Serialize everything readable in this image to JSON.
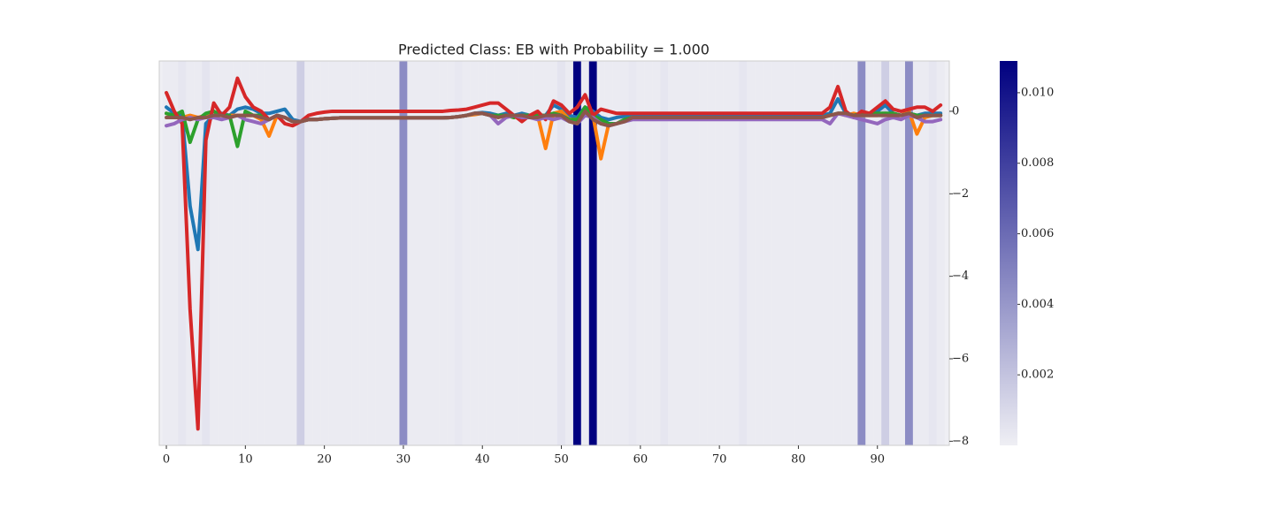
{
  "chart_data": {
    "type": "line",
    "title": "Predicted Class: EB with Probability = 1.000",
    "x": [
      0,
      1,
      2,
      3,
      4,
      5,
      6,
      7,
      8,
      9,
      10,
      11,
      12,
      13,
      14,
      15,
      16,
      17,
      18,
      19,
      20,
      21,
      22,
      23,
      24,
      25,
      26,
      27,
      28,
      29,
      30,
      31,
      32,
      33,
      34,
      35,
      36,
      37,
      38,
      39,
      40,
      41,
      42,
      43,
      44,
      45,
      46,
      47,
      48,
      49,
      50,
      51,
      52,
      53,
      54,
      55,
      56,
      57,
      58,
      59,
      60,
      61,
      62,
      63,
      64,
      65,
      66,
      67,
      68,
      69,
      70,
      71,
      72,
      73,
      74,
      75,
      76,
      77,
      78,
      79,
      80,
      81,
      82,
      83,
      84,
      85,
      86,
      87,
      88,
      89,
      90,
      91,
      92,
      93,
      94,
      95,
      96,
      97,
      98
    ],
    "xlim": [
      -0.9,
      99.1
    ],
    "xticks": [
      0,
      10,
      20,
      30,
      40,
      50,
      60,
      70,
      80,
      90
    ],
    "ylim": [
      -8.1,
      1.22
    ],
    "yticks": [
      0,
      {
        "value": -2,
        "label": "−2"
      },
      {
        "value": -4,
        "label": "−4"
      },
      {
        "value": -6,
        "label": "−6"
      },
      {
        "value": -8,
        "label": "−8"
      }
    ],
    "series": [
      {
        "color": "#1f77b4",
        "values": [
          0.1,
          -0.05,
          -0.1,
          -2.3,
          -3.35,
          -0.3,
          -0.1,
          -0.05,
          -0.1,
          0.05,
          0.1,
          0.05,
          -0.05,
          -0.05,
          0.0,
          0.05,
          -0.2,
          -0.25,
          -0.2,
          -0.2,
          -0.18,
          -0.17,
          -0.16,
          -0.16,
          -0.16,
          -0.16,
          -0.16,
          -0.16,
          -0.16,
          -0.16,
          -0.16,
          -0.16,
          -0.16,
          -0.16,
          -0.16,
          -0.16,
          -0.15,
          -0.13,
          -0.1,
          -0.05,
          -0.03,
          -0.05,
          -0.1,
          -0.05,
          -0.1,
          -0.05,
          -0.1,
          -0.1,
          -0.1,
          0.15,
          0.05,
          -0.1,
          -0.15,
          0.1,
          0.0,
          -0.15,
          -0.2,
          -0.15,
          -0.12,
          -0.1,
          -0.1,
          -0.1,
          -0.1,
          -0.1,
          -0.1,
          -0.1,
          -0.1,
          -0.1,
          -0.1,
          -0.1,
          -0.1,
          -0.1,
          -0.1,
          -0.1,
          -0.1,
          -0.1,
          -0.1,
          -0.1,
          -0.1,
          -0.1,
          -0.1,
          -0.1,
          -0.1,
          -0.1,
          -0.05,
          0.3,
          -0.05,
          -0.15,
          -0.05,
          -0.1,
          0.0,
          0.15,
          -0.05,
          -0.1,
          -0.05,
          -0.1,
          -0.05,
          -0.05,
          -0.05
        ]
      },
      {
        "color": "#ff7f0e",
        "values": [
          -0.05,
          -0.15,
          -0.15,
          -0.1,
          -0.15,
          -0.1,
          -0.1,
          -0.1,
          -0.1,
          -0.1,
          -0.1,
          -0.1,
          -0.2,
          -0.6,
          -0.1,
          -0.15,
          -0.25,
          -0.25,
          -0.2,
          -0.2,
          -0.18,
          -0.17,
          -0.16,
          -0.16,
          -0.16,
          -0.16,
          -0.16,
          -0.16,
          -0.16,
          -0.16,
          -0.16,
          -0.16,
          -0.16,
          -0.16,
          -0.16,
          -0.16,
          -0.15,
          -0.13,
          -0.1,
          -0.08,
          -0.05,
          -0.1,
          -0.15,
          -0.1,
          -0.15,
          -0.1,
          -0.1,
          -0.1,
          -0.9,
          -0.05,
          0.0,
          -0.2,
          -0.2,
          0.05,
          -0.1,
          -1.15,
          -0.3,
          -0.3,
          -0.2,
          -0.15,
          -0.15,
          -0.15,
          -0.15,
          -0.15,
          -0.15,
          -0.15,
          -0.15,
          -0.15,
          -0.15,
          -0.15,
          -0.15,
          -0.15,
          -0.15,
          -0.15,
          -0.15,
          -0.15,
          -0.15,
          -0.15,
          -0.15,
          -0.15,
          -0.15,
          -0.15,
          -0.15,
          -0.15,
          -0.1,
          -0.05,
          -0.1,
          -0.05,
          -0.1,
          -0.1,
          -0.1,
          -0.05,
          -0.1,
          -0.1,
          0.0,
          -0.55,
          -0.15,
          -0.1,
          -0.1
        ]
      },
      {
        "color": "#2ca02c",
        "values": [
          -0.05,
          -0.1,
          0.0,
          -0.75,
          -0.2,
          -0.05,
          0.0,
          -0.1,
          -0.1,
          -0.85,
          0.0,
          -0.1,
          -0.1,
          -0.2,
          -0.1,
          -0.15,
          -0.25,
          -0.25,
          -0.2,
          -0.2,
          -0.18,
          -0.17,
          -0.16,
          -0.16,
          -0.16,
          -0.16,
          -0.16,
          -0.16,
          -0.16,
          -0.16,
          -0.16,
          -0.16,
          -0.16,
          -0.16,
          -0.16,
          -0.16,
          -0.15,
          -0.13,
          -0.1,
          -0.05,
          -0.05,
          -0.1,
          -0.1,
          -0.1,
          -0.15,
          -0.1,
          -0.1,
          -0.1,
          -0.1,
          -0.05,
          -0.1,
          -0.2,
          -0.2,
          0.1,
          -0.1,
          -0.2,
          -0.3,
          -0.3,
          -0.2,
          -0.15,
          -0.15,
          -0.15,
          -0.15,
          -0.15,
          -0.15,
          -0.15,
          -0.15,
          -0.15,
          -0.15,
          -0.15,
          -0.15,
          -0.15,
          -0.15,
          -0.15,
          -0.15,
          -0.15,
          -0.15,
          -0.15,
          -0.15,
          -0.15,
          -0.15,
          -0.15,
          -0.15,
          -0.15,
          -0.1,
          -0.05,
          -0.05,
          -0.1,
          -0.05,
          -0.05,
          -0.05,
          -0.05,
          -0.05,
          -0.1,
          -0.05,
          -0.1,
          -0.1,
          -0.1,
          -0.1
        ]
      },
      {
        "color": "#d62728",
        "values": [
          0.45,
          0.0,
          -0.3,
          -4.8,
          -7.7,
          -0.7,
          0.2,
          -0.1,
          0.1,
          0.8,
          0.35,
          0.1,
          0.0,
          -0.2,
          -0.1,
          -0.3,
          -0.35,
          -0.25,
          -0.1,
          -0.05,
          -0.02,
          0.0,
          0.0,
          0.0,
          0.0,
          0.0,
          0.0,
          0.0,
          0.0,
          0.0,
          0.0,
          0.0,
          0.0,
          0.0,
          0.0,
          0.0,
          0.02,
          0.03,
          0.05,
          0.1,
          0.15,
          0.2,
          0.2,
          0.05,
          -0.1,
          -0.25,
          -0.1,
          0.0,
          -0.2,
          0.25,
          0.15,
          -0.05,
          0.1,
          0.4,
          -0.1,
          0.05,
          0.0,
          -0.05,
          -0.05,
          -0.05,
          -0.05,
          -0.05,
          -0.05,
          -0.05,
          -0.05,
          -0.05,
          -0.05,
          -0.05,
          -0.05,
          -0.05,
          -0.05,
          -0.05,
          -0.05,
          -0.05,
          -0.05,
          -0.05,
          -0.05,
          -0.05,
          -0.05,
          -0.05,
          -0.05,
          -0.05,
          -0.05,
          -0.05,
          0.1,
          0.6,
          0.0,
          -0.15,
          0.0,
          -0.05,
          0.1,
          0.25,
          0.05,
          0.0,
          0.05,
          0.1,
          0.1,
          0.0,
          0.15
        ]
      },
      {
        "color": "#9467bd",
        "values": [
          -0.35,
          -0.3,
          -0.2,
          -0.15,
          -0.2,
          -0.15,
          -0.15,
          -0.2,
          -0.15,
          -0.1,
          -0.2,
          -0.25,
          -0.3,
          -0.2,
          -0.1,
          -0.15,
          -0.25,
          -0.25,
          -0.2,
          -0.2,
          -0.18,
          -0.17,
          -0.16,
          -0.16,
          -0.16,
          -0.16,
          -0.16,
          -0.16,
          -0.16,
          -0.16,
          -0.16,
          -0.16,
          -0.16,
          -0.16,
          -0.16,
          -0.16,
          -0.15,
          -0.13,
          -0.1,
          -0.05,
          -0.05,
          -0.1,
          -0.3,
          -0.15,
          -0.1,
          -0.15,
          -0.15,
          -0.2,
          -0.15,
          -0.2,
          -0.15,
          -0.25,
          -0.3,
          -0.1,
          -0.15,
          -0.3,
          -0.35,
          -0.3,
          -0.25,
          -0.2,
          -0.2,
          -0.2,
          -0.2,
          -0.2,
          -0.2,
          -0.2,
          -0.2,
          -0.2,
          -0.2,
          -0.2,
          -0.2,
          -0.2,
          -0.2,
          -0.2,
          -0.2,
          -0.2,
          -0.2,
          -0.2,
          -0.2,
          -0.2,
          -0.2,
          -0.2,
          -0.2,
          -0.2,
          -0.3,
          -0.05,
          -0.1,
          -0.15,
          -0.2,
          -0.25,
          -0.3,
          -0.2,
          -0.15,
          -0.2,
          -0.1,
          -0.15,
          -0.25,
          -0.25,
          -0.2
        ]
      },
      {
        "color": "#8c564b",
        "values": [
          -0.15,
          -0.15,
          -0.15,
          -0.2,
          -0.15,
          -0.15,
          -0.1,
          -0.1,
          -0.15,
          -0.1,
          -0.1,
          -0.1,
          -0.15,
          -0.2,
          -0.1,
          -0.15,
          -0.25,
          -0.25,
          -0.2,
          -0.2,
          -0.18,
          -0.17,
          -0.16,
          -0.16,
          -0.16,
          -0.16,
          -0.16,
          -0.16,
          -0.16,
          -0.16,
          -0.16,
          -0.16,
          -0.16,
          -0.16,
          -0.16,
          -0.16,
          -0.15,
          -0.13,
          -0.1,
          -0.05,
          -0.05,
          -0.1,
          -0.15,
          -0.1,
          -0.1,
          -0.1,
          -0.15,
          -0.15,
          -0.1,
          -0.1,
          -0.1,
          -0.25,
          -0.3,
          0.0,
          -0.2,
          -0.3,
          -0.35,
          -0.3,
          -0.25,
          -0.15,
          -0.15,
          -0.15,
          -0.15,
          -0.15,
          -0.15,
          -0.15,
          -0.15,
          -0.15,
          -0.15,
          -0.15,
          -0.15,
          -0.15,
          -0.15,
          -0.15,
          -0.15,
          -0.15,
          -0.15,
          -0.15,
          -0.15,
          -0.15,
          -0.15,
          -0.15,
          -0.15,
          -0.15,
          -0.1,
          -0.05,
          -0.05,
          -0.1,
          -0.1,
          -0.1,
          -0.1,
          -0.1,
          -0.1,
          -0.1,
          -0.05,
          -0.15,
          -0.1,
          -0.1,
          -0.1
        ]
      }
    ],
    "heatmap": {
      "values": [
        0.0002,
        0.0002,
        0.0004,
        0.0002,
        0.0002,
        0.0005,
        0.0002,
        0.0002,
        0.0002,
        0.0002,
        0.0002,
        0.0002,
        0.0002,
        0.0002,
        0.0002,
        0.0002,
        0.0002,
        0.0015,
        0.0002,
        0.0002,
        0.0002,
        0.0002,
        0.0002,
        0.0002,
        0.0002,
        0.0002,
        0.0002,
        0.0002,
        0.0002,
        0.0002,
        0.0045,
        0.0002,
        0.0002,
        0.0002,
        0.0002,
        0.0002,
        0.0002,
        0.0003,
        0.0002,
        0.0002,
        0.0002,
        0.0002,
        0.0002,
        0.0002,
        0.0002,
        0.0002,
        0.0002,
        0.0002,
        0.0002,
        0.0002,
        0.0005,
        0.0002,
        0.0109,
        0.0002,
        0.0109,
        0.0002,
        0.0002,
        0.0002,
        0.0002,
        0.0003,
        0.0002,
        0.0002,
        0.0002,
        0.0004,
        0.0002,
        0.0002,
        0.0002,
        0.0002,
        0.0002,
        0.0002,
        0.0002,
        0.0002,
        0.0002,
        0.0004,
        0.0002,
        0.0002,
        0.0002,
        0.0002,
        0.0002,
        0.0002,
        0.0002,
        0.0002,
        0.0002,
        0.0002,
        0.0002,
        0.0002,
        0.0002,
        0.0002,
        0.0045,
        0.0002,
        0.0002,
        0.0015,
        0.0002,
        0.0002,
        0.0045,
        0.0002,
        0.0002,
        0.0004,
        0.0002
      ],
      "cmap": [
        "#efeff4",
        "#000080"
      ],
      "clim": [
        0,
        0.0109
      ],
      "ticks": [
        0.002,
        0.004,
        0.006,
        0.008,
        {
          "value": 0.01,
          "label": "0.010"
        }
      ]
    }
  }
}
